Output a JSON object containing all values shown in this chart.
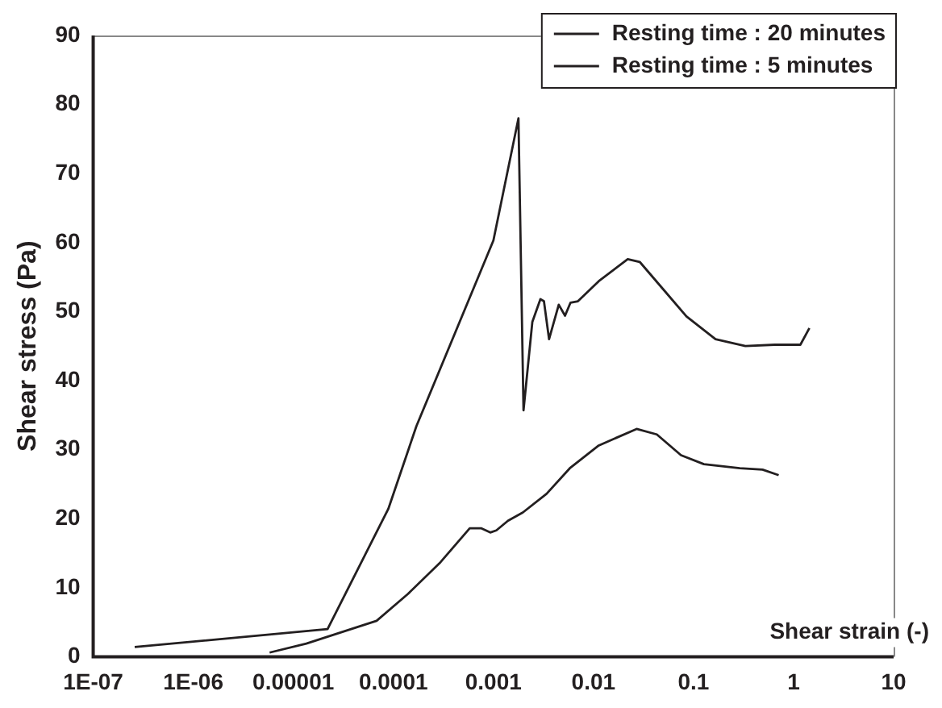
{
  "chart_data": {
    "type": "line",
    "xlabel": "Shear strain (-)",
    "ylabel": "Shear stress (Pa)",
    "log": "x",
    "xlim": [
      1e-07,
      10
    ],
    "xticks": [
      {
        "value": 1e-07,
        "label": "1E-07"
      },
      {
        "value": 1e-06,
        "label": "1E-06"
      },
      {
        "value": 1e-05,
        "label": "0.00001"
      },
      0.0001,
      0.001,
      0.01,
      0.1,
      1,
      10
    ],
    "ylim": [
      0,
      90
    ],
    "yticks": [
      0,
      10,
      20,
      30,
      40,
      50,
      60,
      70,
      80,
      90
    ],
    "grid": false,
    "legend": "top right",
    "marker": "none",
    "line_style": "solid",
    "series": [
      {
        "name": "Resting time : 20 minutes",
        "color": "#231f20",
        "x": [
          2.6e-07,
          2.2e-05,
          8.9e-05,
          0.00017,
          0.001,
          0.00178,
          0.002,
          0.00245,
          0.00295,
          0.0032,
          0.0036,
          0.0045,
          0.0052,
          0.0059,
          0.007,
          0.0113,
          0.022,
          0.029,
          0.05,
          0.085,
          0.166,
          0.33,
          0.65,
          1.17,
          1.44
        ],
        "values": [
          1.4,
          4,
          21.4,
          33.4,
          60.3,
          78,
          35.7,
          48.5,
          51.8,
          51.5,
          46,
          51,
          49.4,
          51.3,
          51.5,
          54.4,
          57.6,
          57.2,
          53.2,
          49.3,
          46,
          45,
          45.2,
          45.2,
          47.6
        ]
      },
      {
        "name": "Resting time : 5 minutes",
        "color": "#231f20",
        "x": [
          5.8e-06,
          1.35e-05,
          6.8e-05,
          0.00014,
          0.000296,
          0.00058,
          0.00076,
          0.00093,
          0.00107,
          0.0014,
          0.00197,
          0.0034,
          0.0058,
          0.0113,
          0.027,
          0.043,
          0.075,
          0.127,
          0.29,
          0.49,
          0.71
        ],
        "values": [
          0.6,
          1.9,
          5.2,
          9.1,
          13.7,
          18.6,
          18.6,
          18,
          18.3,
          19.7,
          20.9,
          23.6,
          27.3,
          30.6,
          33,
          32.2,
          29.2,
          27.9,
          27.3,
          27.1,
          26.3
        ]
      }
    ]
  }
}
